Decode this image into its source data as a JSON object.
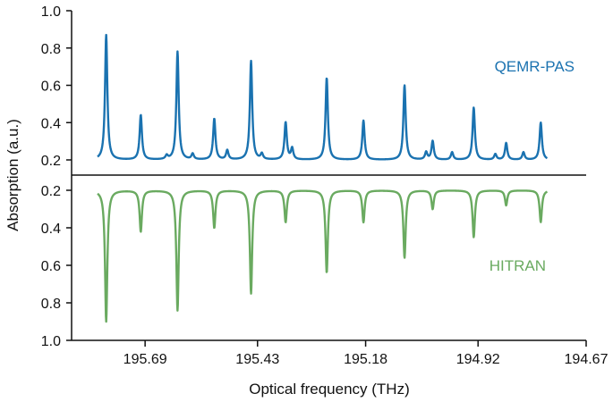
{
  "chart_data": {
    "type": "line",
    "xlabel": "Optical frequency (THz)",
    "ylabel": "Absorption (a.u.)",
    "x_ticks": [
      "195.69",
      "195.43",
      "195.18",
      "194.92",
      "194.67"
    ],
    "x_tick_values": [
      195.69,
      195.43,
      195.18,
      194.92,
      194.67
    ],
    "xlim": [
      195.86,
      194.67
    ],
    "x_reversed": true,
    "baseline": 0.2,
    "top_panel": {
      "y_ticks": [
        "0.2",
        "0.4",
        "0.6",
        "0.8",
        "1.0"
      ],
      "ylim": [
        0.2,
        1.0
      ],
      "inverted": false
    },
    "bottom_panel": {
      "y_ticks": [
        "0.2",
        "0.4",
        "0.6",
        "0.8",
        "1.0"
      ],
      "ylim": [
        0.2,
        1.0
      ],
      "inverted": true
    },
    "series": [
      {
        "name": "QEMR-PAS",
        "color": "#1a72b0",
        "panel": "top",
        "peaks": [
          {
            "x": 195.78,
            "y": 0.87
          },
          {
            "x": 195.7,
            "y": 0.44
          },
          {
            "x": 195.64,
            "y": 0.22
          },
          {
            "x": 195.615,
            "y": 0.78
          },
          {
            "x": 195.58,
            "y": 0.23
          },
          {
            "x": 195.53,
            "y": 0.42
          },
          {
            "x": 195.5,
            "y": 0.25
          },
          {
            "x": 195.445,
            "y": 0.73
          },
          {
            "x": 195.42,
            "y": 0.23
          },
          {
            "x": 195.365,
            "y": 0.4
          },
          {
            "x": 195.35,
            "y": 0.26
          },
          {
            "x": 195.27,
            "y": 0.64
          },
          {
            "x": 195.185,
            "y": 0.41
          },
          {
            "x": 195.09,
            "y": 0.6
          },
          {
            "x": 195.04,
            "y": 0.24
          },
          {
            "x": 195.025,
            "y": 0.3
          },
          {
            "x": 194.98,
            "y": 0.24
          },
          {
            "x": 194.93,
            "y": 0.48
          },
          {
            "x": 194.88,
            "y": 0.23
          },
          {
            "x": 194.855,
            "y": 0.29
          },
          {
            "x": 194.815,
            "y": 0.24
          },
          {
            "x": 194.775,
            "y": 0.4
          }
        ]
      },
      {
        "name": "HITRAN",
        "color": "#6aaa60",
        "panel": "bottom",
        "peaks": [
          {
            "x": 195.78,
            "y": 0.9
          },
          {
            "x": 195.7,
            "y": 0.42
          },
          {
            "x": 195.615,
            "y": 0.84
          },
          {
            "x": 195.53,
            "y": 0.4
          },
          {
            "x": 195.445,
            "y": 0.75
          },
          {
            "x": 195.365,
            "y": 0.37
          },
          {
            "x": 195.27,
            "y": 0.64
          },
          {
            "x": 195.185,
            "y": 0.37
          },
          {
            "x": 195.09,
            "y": 0.56
          },
          {
            "x": 195.025,
            "y": 0.3
          },
          {
            "x": 194.93,
            "y": 0.45
          },
          {
            "x": 194.855,
            "y": 0.28
          },
          {
            "x": 194.775,
            "y": 0.37
          }
        ]
      }
    ],
    "xrange_series": [
      195.8,
      194.76
    ]
  }
}
